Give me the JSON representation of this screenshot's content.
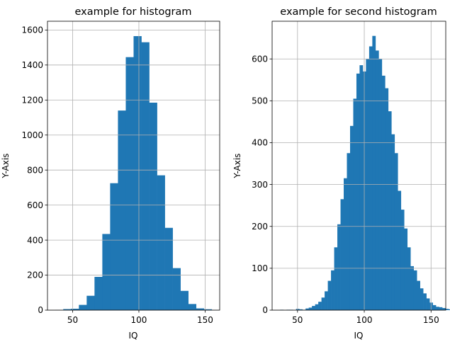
{
  "chart_data": [
    {
      "type": "bar",
      "title": "example for histogram",
      "xlabel": "IQ",
      "ylabel": "Y-Axis",
      "xlim": [
        31,
        161
      ],
      "ylim": [
        0,
        1650
      ],
      "xticks": [
        50,
        100,
        150
      ],
      "yticks": [
        0,
        200,
        400,
        600,
        800,
        1000,
        1200,
        1400,
        1600
      ],
      "grid": true,
      "color": "#1f77b4",
      "bin_start": 37,
      "bin_width": 5.9,
      "values": [
        2,
        6,
        8,
        30,
        82,
        190,
        435,
        725,
        1140,
        1445,
        1565,
        1530,
        1185,
        770,
        470,
        240,
        110,
        35,
        10,
        5
      ]
    },
    {
      "type": "bar",
      "title": "example for second histogram",
      "xlabel": "IQ",
      "ylabel": "Y-Axis",
      "xlim": [
        31,
        161
      ],
      "ylim": [
        0,
        690
      ],
      "xticks": [
        50,
        100,
        150
      ],
      "yticks": [
        0,
        100,
        200,
        300,
        400,
        500,
        600
      ],
      "grid": true,
      "color": "#1f77b4",
      "bin_start": 37,
      "bin_width": 2.38,
      "values": [
        1,
        0,
        1,
        1,
        0,
        3,
        2,
        1,
        4,
        6,
        10,
        14,
        20,
        30,
        45,
        70,
        95,
        150,
        205,
        265,
        315,
        375,
        440,
        505,
        565,
        585,
        570,
        600,
        630,
        655,
        620,
        600,
        560,
        530,
        475,
        420,
        375,
        285,
        240,
        195,
        150,
        105,
        95,
        70,
        52,
        40,
        28,
        18,
        12,
        8,
        7,
        5,
        3,
        2,
        1,
        0,
        1,
        2
      ]
    }
  ]
}
